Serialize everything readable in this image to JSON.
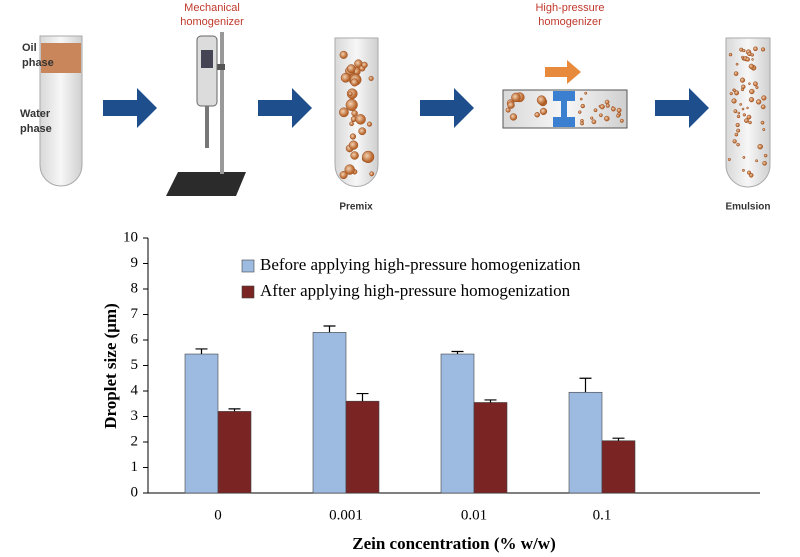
{
  "diagram": {
    "oil_label": [
      "Oil",
      "phase"
    ],
    "water_label": [
      "Water",
      "phase"
    ],
    "mechanical_label": [
      "Mechanical",
      "homogenizer"
    ],
    "premix_label": "Premix",
    "high_pressure_label": [
      "High-pressure",
      "homogenizer"
    ],
    "emulsion_label": "Emulsion"
  },
  "chart_data": {
    "type": "bar",
    "xlabel": "Zein concentration (% w/w)",
    "ylabel": "Droplet size (μm)",
    "categories": [
      "0",
      "0.001",
      "0.01",
      "0.1"
    ],
    "series": [
      {
        "name": "Before applying high-pressure homogenization",
        "color": "#9dbbe0",
        "values": [
          5.45,
          6.3,
          5.45,
          3.95
        ],
        "errors": [
          0.2,
          0.25,
          0.1,
          0.55
        ]
      },
      {
        "name": "After applying high-pressure homogenization",
        "color": "#7a2424",
        "values": [
          3.2,
          3.6,
          3.55,
          2.05
        ],
        "errors": [
          0.1,
          0.3,
          0.1,
          0.1
        ]
      }
    ],
    "ylim": [
      0,
      10
    ],
    "yticks": [
      0,
      1,
      2,
      3,
      4,
      5,
      6,
      7,
      8,
      9,
      10
    ]
  }
}
